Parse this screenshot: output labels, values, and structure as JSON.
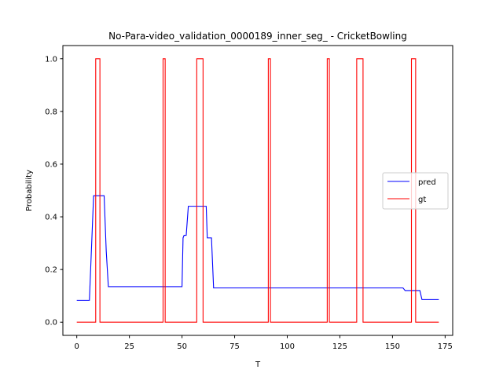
{
  "chart_data": {
    "type": "line",
    "title": "No-Para-video_validation_0000189_inner_seg_ - CricketBowling",
    "xlabel": "T",
    "ylabel": "Probability",
    "xlim": [
      -6.6,
      178.6
    ],
    "ylim": [
      -0.05,
      1.05
    ],
    "xticks": [
      0,
      25,
      50,
      75,
      100,
      125,
      150,
      175
    ],
    "yticks": [
      0.0,
      0.2,
      0.4,
      0.6,
      0.8,
      1.0
    ],
    "legend_position": "center-right",
    "series": [
      {
        "name": "pred",
        "color": "#0000ff",
        "x": [
          0,
          6,
          8,
          9,
          13,
          14,
          15,
          50,
          50.5,
          51,
          52,
          53,
          61,
          61.5,
          62,
          64,
          65,
          155,
          156,
          163,
          164,
          172
        ],
        "y": [
          0.083,
          0.083,
          0.48,
          0.48,
          0.48,
          0.27,
          0.135,
          0.135,
          0.32,
          0.33,
          0.33,
          0.44,
          0.44,
          0.44,
          0.32,
          0.32,
          0.13,
          0.13,
          0.12,
          0.12,
          0.086,
          0.086
        ]
      },
      {
        "name": "gt",
        "color": "#ff0000",
        "step": true,
        "x": [
          0,
          9,
          9,
          11,
          11,
          41,
          41,
          42,
          42,
          57,
          57,
          60,
          60,
          91,
          91,
          92,
          92,
          119,
          119,
          120,
          120,
          133,
          133,
          136,
          136,
          159,
          159,
          161,
          161,
          172
        ],
        "y": [
          0,
          0,
          1,
          1,
          0,
          0,
          1,
          1,
          0,
          0,
          1,
          1,
          0,
          0,
          1,
          1,
          0,
          0,
          1,
          1,
          0,
          0,
          1,
          1,
          0,
          0,
          1,
          1,
          0,
          0
        ]
      }
    ]
  }
}
